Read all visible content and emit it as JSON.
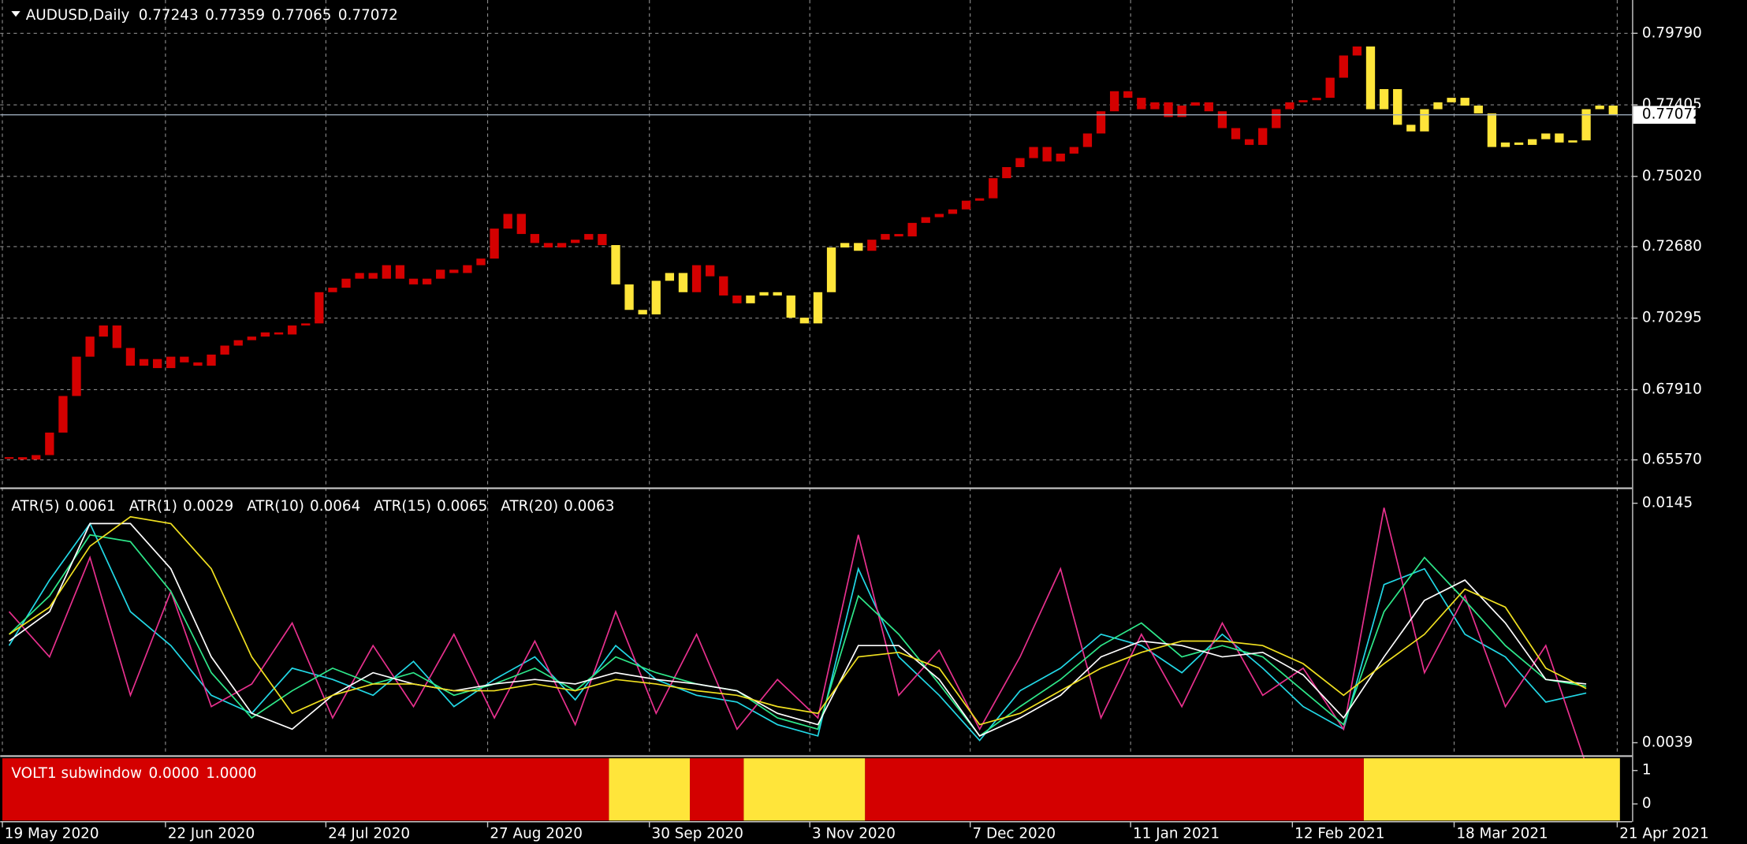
{
  "chart_data": [
    {
      "type": "candlestick",
      "title": "AUDUSD,Daily",
      "ohlc": [
        0.77243,
        0.77359,
        0.77065,
        0.77072
      ],
      "close": [
        0.6566,
        0.6558,
        0.6573,
        0.6648,
        0.677,
        0.6901,
        0.6968,
        0.7005,
        0.693,
        0.6871,
        0.6893,
        0.6863,
        0.6901,
        0.6882,
        0.6871,
        0.6908,
        0.6938,
        0.6956,
        0.6968,
        0.6982,
        0.6975,
        0.7005,
        0.7012,
        0.7116,
        0.7131,
        0.7161,
        0.718,
        0.7161,
        0.7206,
        0.7161,
        0.7142,
        0.7161,
        0.7191,
        0.718,
        0.7206,
        0.7228,
        0.7328,
        0.7377,
        0.731,
        0.728,
        0.7265,
        0.728,
        0.7291,
        0.731,
        0.7273,
        0.7142,
        0.7057,
        0.7042,
        0.7154,
        0.718,
        0.7116,
        0.7206,
        0.7169,
        0.7105,
        0.7079,
        0.7105,
        0.7116,
        0.7105,
        0.7031,
        0.7012,
        0.7116,
        0.7265,
        0.728,
        0.7254,
        0.7291,
        0.731,
        0.7302,
        0.7347,
        0.7366,
        0.7377,
        0.7392,
        0.7421,
        0.7429,
        0.7496,
        0.7533,
        0.7563,
        0.76,
        0.7552,
        0.7578,
        0.76,
        0.7645,
        0.7719,
        0.7786,
        0.7764,
        0.7726,
        0.7749,
        0.77,
        0.7738,
        0.7749,
        0.7719,
        0.7663,
        0.7626,
        0.7607,
        0.7663,
        0.7726,
        0.7749,
        0.7756,
        0.7764,
        0.7831,
        0.7905,
        0.7935,
        0.7726,
        0.7793,
        0.7674,
        0.7652,
        0.7726,
        0.7749,
        0.7764,
        0.7738,
        0.7712,
        0.76,
        0.7615,
        0.7607,
        0.7626,
        0.7645,
        0.7615,
        0.7622,
        0.7726,
        0.7738,
        0.7707
      ],
      "xlim": [
        -0.66,
        120.4
      ],
      "xticks": [
        {
          "value": -0.5,
          "label": "19 May 2020"
        },
        {
          "value": 11.6,
          "label": "22 Jun 2020"
        },
        {
          "value": 23.5,
          "label": "24 Jul 2020"
        },
        {
          "value": 35.5,
          "label": "27 Aug 2020"
        },
        {
          "value": 47.5,
          "label": "30 Sep 2020"
        },
        {
          "value": 59.4,
          "label": "3 Nov 2020"
        },
        {
          "value": 71.3,
          "label": "7 Dec 2020"
        },
        {
          "value": 83.2,
          "label": "11 Jan 2021"
        },
        {
          "value": 95.2,
          "label": "12 Feb 2021"
        },
        {
          "value": 107.2,
          "label": "18 Mar 2021"
        },
        {
          "value": 119.3,
          "label": "21 Apr 2021"
        }
      ],
      "ylim": [
        0.6468,
        0.809
      ],
      "yticks": [
        {
          "value": 0.7979,
          "label": "0.79790"
        },
        0.77405,
        {
          "value": 0.7502,
          "label": "0.75020"
        },
        {
          "value": 0.7268,
          "label": "0.72680"
        },
        0.70295,
        {
          "value": 0.6791,
          "label": "0.67910"
        },
        {
          "value": 0.6557,
          "label": "0.65570"
        }
      ],
      "grid": true
    },
    {
      "type": "line",
      "x": [
        0,
        3,
        6,
        9,
        12,
        15,
        18,
        21,
        24,
        27,
        30,
        33,
        36,
        39,
        42,
        45,
        48,
        51,
        54,
        57,
        60,
        63,
        66,
        69,
        72,
        75,
        78,
        81,
        84,
        87,
        90,
        93,
        96,
        99,
        102,
        105,
        108,
        111,
        114,
        117
      ],
      "series": [
        {
          "name": "ATR(5)",
          "last": 0.0061,
          "color": "#22d8e6",
          "values": [
            0.0082,
            0.0111,
            0.0136,
            0.0097,
            0.0082,
            0.006,
            0.0052,
            0.0072,
            0.0067,
            0.006,
            0.0075,
            0.0055,
            0.0067,
            0.0077,
            0.0058,
            0.0082,
            0.0067,
            0.006,
            0.0057,
            0.0047,
            0.0042,
            0.0116,
            0.0077,
            0.006,
            0.004,
            0.0062,
            0.0072,
            0.0087,
            0.0082,
            0.007,
            0.0087,
            0.0072,
            0.0055,
            0.0045,
            0.0109,
            0.0116,
            0.0087,
            0.0077,
            0.0057,
            0.0061
          ]
        },
        {
          "name": "ATR(1)",
          "last": 0.0029,
          "color": "#e8308e",
          "values": [
            0.0097,
            0.0077,
            0.0121,
            0.006,
            0.0106,
            0.0055,
            0.0065,
            0.0092,
            0.005,
            0.0082,
            0.0055,
            0.0087,
            0.005,
            0.0084,
            0.0047,
            0.0097,
            0.0052,
            0.0087,
            0.0045,
            0.0067,
            0.005,
            0.0131,
            0.006,
            0.008,
            0.0045,
            0.0077,
            0.0116,
            0.005,
            0.0087,
            0.0055,
            0.0092,
            0.006,
            0.0072,
            0.0045,
            0.0143,
            0.007,
            0.0104,
            0.0055,
            0.0082,
            0.0029
          ]
        },
        {
          "name": "ATR(10)",
          "last": 0.0064,
          "color": "#2ee88a",
          "values": [
            0.0087,
            0.0104,
            0.0131,
            0.0128,
            0.0106,
            0.007,
            0.005,
            0.0062,
            0.0072,
            0.0065,
            0.007,
            0.006,
            0.0065,
            0.0072,
            0.0062,
            0.0077,
            0.007,
            0.0065,
            0.0062,
            0.005,
            0.0045,
            0.0104,
            0.0087,
            0.0065,
            0.0042,
            0.0055,
            0.0067,
            0.0082,
            0.0092,
            0.0077,
            0.0082,
            0.0077,
            0.0062,
            0.0047,
            0.0097,
            0.0121,
            0.0102,
            0.0082,
            0.0067,
            0.0064
          ]
        },
        {
          "name": "ATR(15)",
          "last": 0.0065,
          "color": "#ffffff",
          "values": [
            0.0084,
            0.0097,
            0.0136,
            0.0136,
            0.0116,
            0.0077,
            0.0052,
            0.0045,
            0.006,
            0.007,
            0.0065,
            0.0062,
            0.0065,
            0.0067,
            0.0065,
            0.007,
            0.0067,
            0.0065,
            0.0062,
            0.0052,
            0.0047,
            0.0082,
            0.0082,
            0.0067,
            0.0042,
            0.005,
            0.006,
            0.0077,
            0.0084,
            0.0082,
            0.0077,
            0.0079,
            0.0069,
            0.005,
            0.0077,
            0.0102,
            0.0111,
            0.0092,
            0.0067,
            0.0065
          ]
        },
        {
          "name": "ATR(20)",
          "last": 0.0063,
          "color": "#f0e020",
          "values": [
            0.0087,
            0.0099,
            0.0126,
            0.0139,
            0.0136,
            0.0116,
            0.0077,
            0.0052,
            0.006,
            0.0065,
            0.0065,
            0.0062,
            0.0062,
            0.0065,
            0.0062,
            0.0067,
            0.0065,
            0.0062,
            0.006,
            0.0055,
            0.0052,
            0.0077,
            0.0079,
            0.0072,
            0.0047,
            0.0052,
            0.0062,
            0.0072,
            0.0079,
            0.0084,
            0.0084,
            0.0082,
            0.0074,
            0.006,
            0.0074,
            0.0087,
            0.0107,
            0.0099,
            0.0072,
            0.0063
          ]
        }
      ],
      "ylim": [
        0.00336,
        0.01509
      ],
      "yticks": [
        0.0145,
        0.0039
      ]
    },
    {
      "type": "band",
      "title": "VOLT1 subwindow",
      "readout": [
        {
          "value": 0,
          "label": "0.0000"
        },
        {
          "value": 1,
          "label": "1.0000"
        }
      ],
      "colors": [
        "#d40000",
        "#ffe53a"
      ],
      "segments": [
        {
          "from": 0,
          "to": 44,
          "value": 0
        },
        {
          "from": 45,
          "to": 50,
          "value": 1
        },
        {
          "from": 51,
          "to": 54,
          "value": 0
        },
        {
          "from": 55,
          "to": 63,
          "value": 1
        },
        {
          "from": 64,
          "to": 100,
          "value": 0
        },
        {
          "from": 101,
          "to": 119,
          "value": 1
        }
      ],
      "ylim": [
        -0.5,
        1.4
      ],
      "yticks": [
        0,
        1
      ]
    }
  ]
}
